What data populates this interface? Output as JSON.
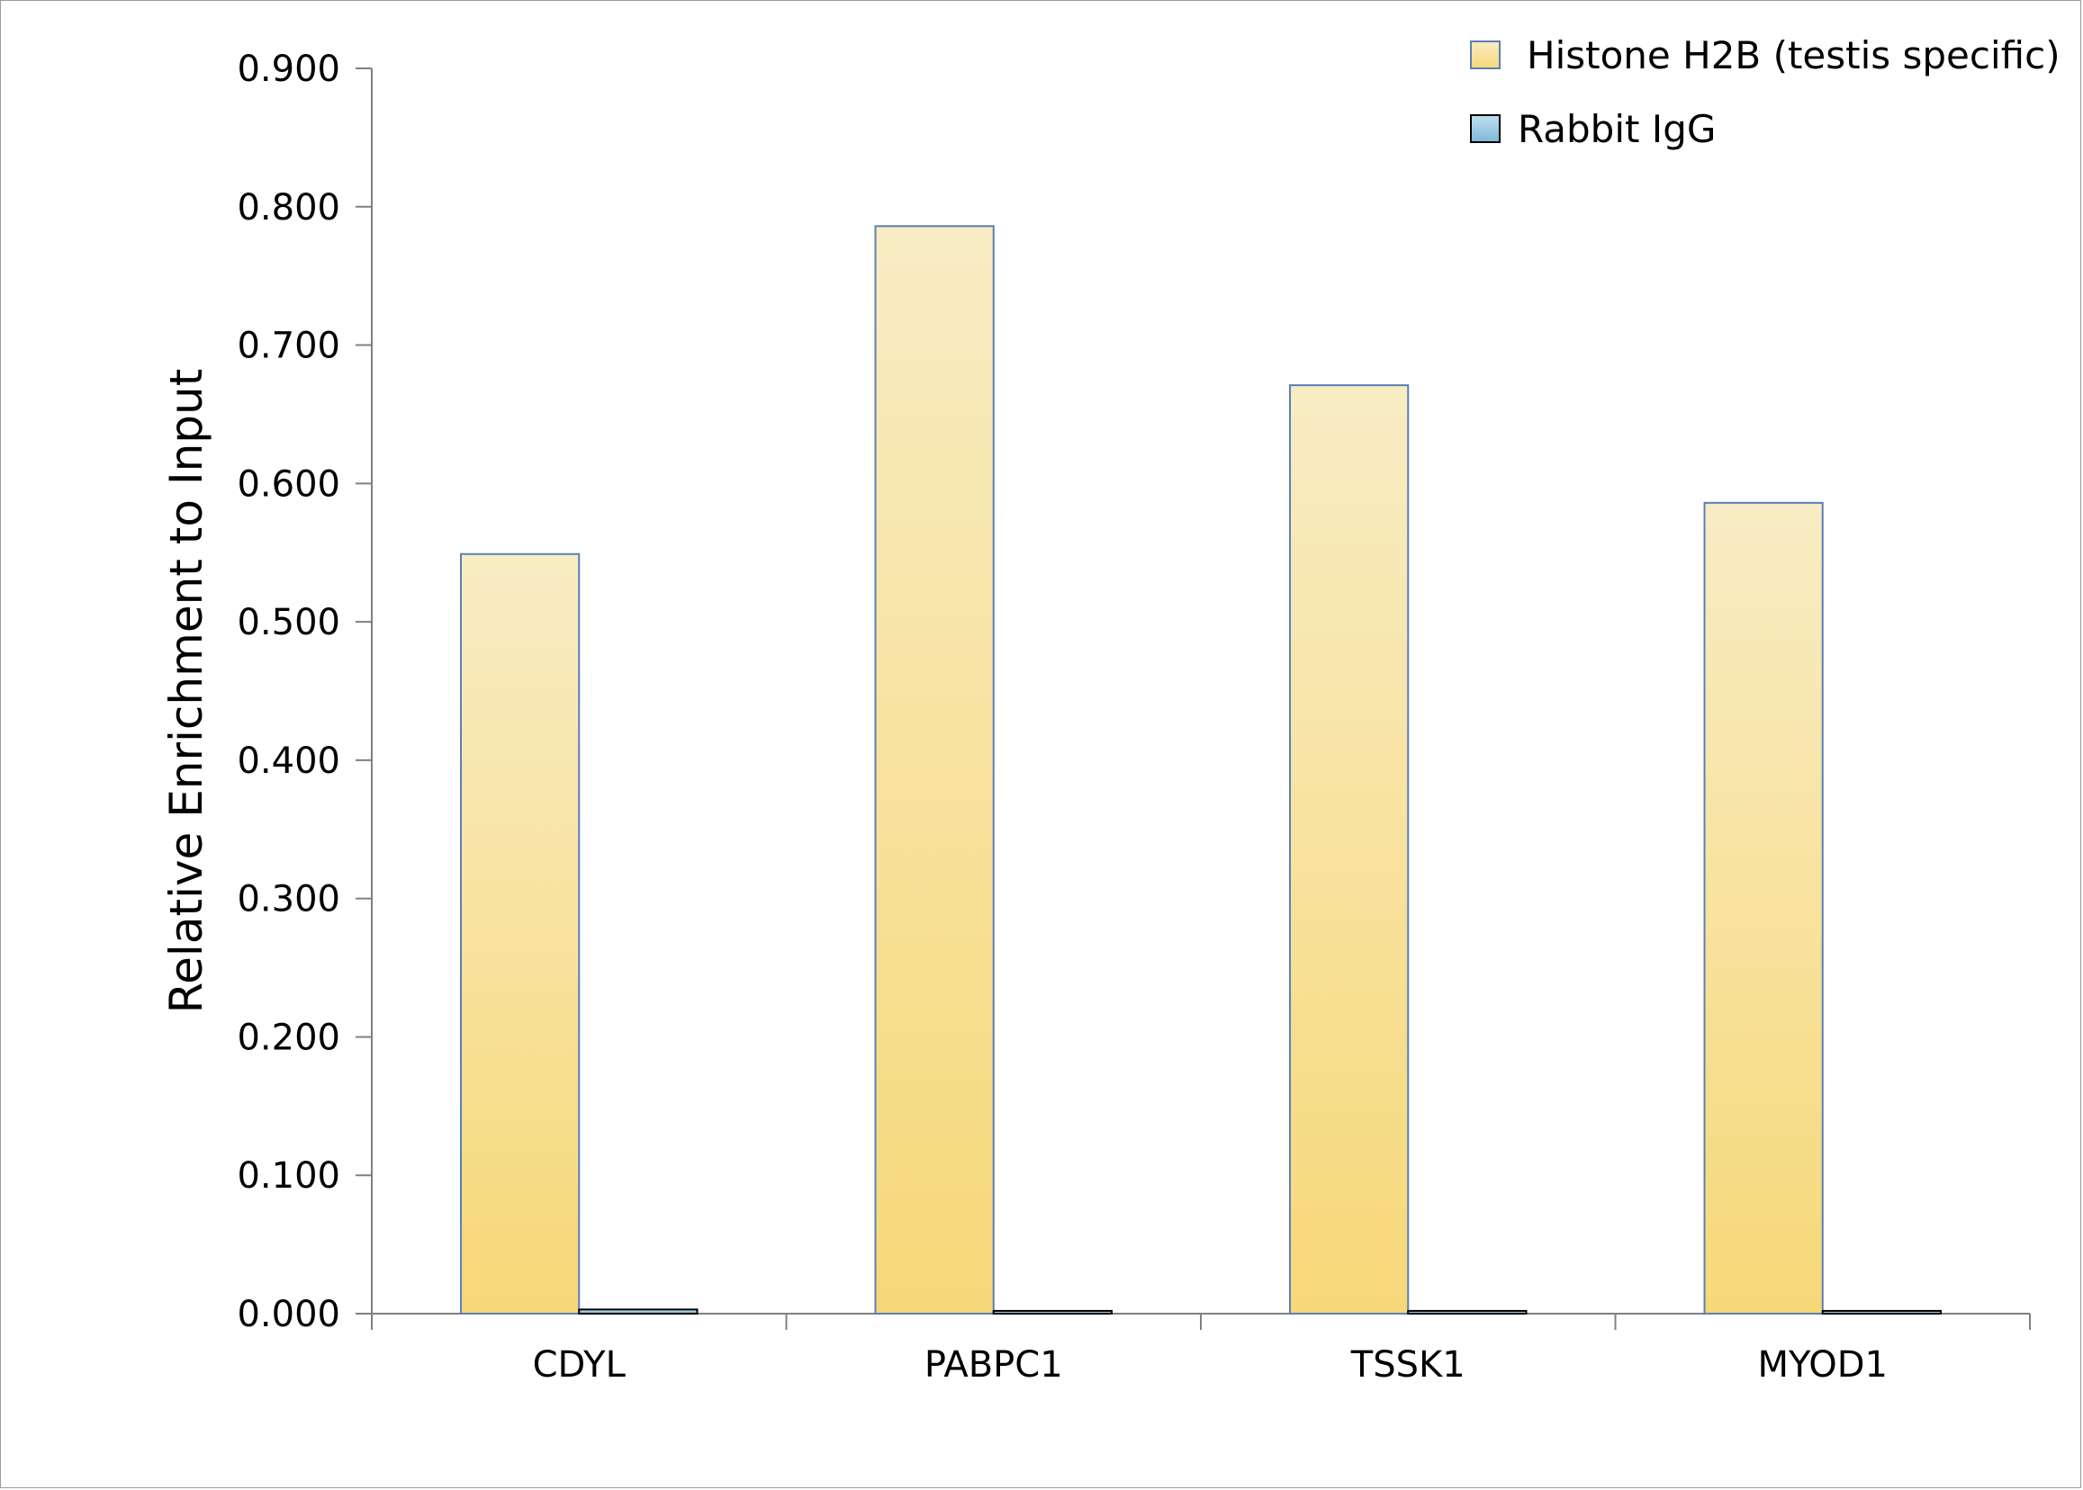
{
  "chart_data": {
    "type": "bar",
    "title": "",
    "xlabel": "",
    "ylabel": "Relative Enrichment to Input",
    "ylim": [
      0,
      0.9
    ],
    "yticks": [
      "0.000",
      "0.100",
      "0.200",
      "0.300",
      "0.400",
      "0.500",
      "0.600",
      "0.700",
      "0.800",
      "0.900"
    ],
    "ytick_values": [
      0,
      0.1,
      0.2,
      0.3,
      0.4,
      0.5,
      0.6,
      0.7,
      0.8,
      0.9
    ],
    "categories": [
      "CDYL",
      "PABPC1",
      "TSSK1",
      "MYOD1"
    ],
    "series": [
      {
        "name": "Histone H2B (testis specific)",
        "values": [
          0.549,
          0.786,
          0.671,
          0.586
        ],
        "color_top": "#f8ecc4",
        "color_bottom": "#f7d878",
        "stroke": "#5b7fb5"
      },
      {
        "name": "Rabbit IgG",
        "values": [
          0.003,
          0.002,
          0.002,
          0.002
        ],
        "color_top": "#bfe0f0",
        "color_bottom": "#7fb8d8",
        "stroke": "#000000"
      }
    ],
    "grid": false,
    "legend": "top-right"
  }
}
